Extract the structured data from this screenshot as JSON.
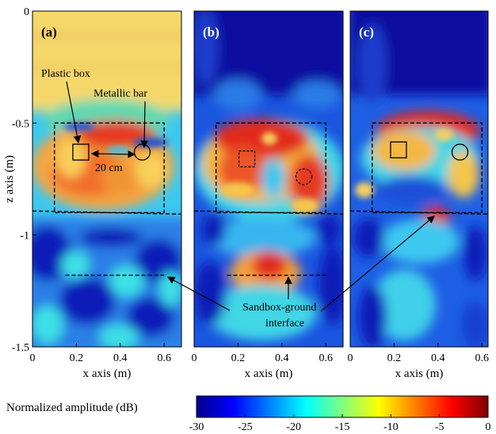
{
  "chart_data": [
    {
      "type": "heatmap",
      "panel_label": "(a)",
      "xlabel": "x axis (m)",
      "ylabel": "z axis (m)",
      "xlim": [
        0,
        0.65
      ],
      "ylim": [
        -1.5,
        0
      ],
      "xticks": [
        "0",
        "0.2",
        "0.4",
        "0.6"
      ],
      "yticks": [
        "0",
        "-0.5",
        "-1",
        "-1.5"
      ],
      "target_box": {
        "x": [
          0.1,
          0.6
        ],
        "z": [
          -0.9,
          -0.5
        ]
      },
      "interface_z": -1.18,
      "markers": [
        {
          "shape": "square",
          "x": 0.22,
          "z": -0.63,
          "style": "solid"
        },
        {
          "shape": "circle",
          "x": 0.5,
          "z": -0.63,
          "style": "solid"
        }
      ],
      "annotations": [
        "Plastic box",
        "Metallic bar",
        "20 cm"
      ]
    },
    {
      "type": "heatmap",
      "panel_label": "(b)",
      "xlabel": "x axis (m)",
      "xlim": [
        0,
        0.65
      ],
      "ylim": [
        -1.5,
        0
      ],
      "xticks": [
        "0",
        "0.2",
        "0.4",
        "0.6"
      ],
      "target_box": {
        "x": [
          0.1,
          0.6
        ],
        "z": [
          -0.9,
          -0.5
        ]
      },
      "interface_z": -1.18,
      "markers": [
        {
          "shape": "square",
          "x": 0.24,
          "z": -0.66,
          "style": "dashed"
        },
        {
          "shape": "circle",
          "x": 0.5,
          "z": -0.74,
          "style": "dashed"
        }
      ]
    },
    {
      "type": "heatmap",
      "panel_label": "(c)",
      "xlabel": "x axis (m)",
      "xlim": [
        0,
        0.65
      ],
      "ylim": [
        -1.5,
        0
      ],
      "xticks": [
        "0",
        "0.2",
        "0.4",
        "0.6"
      ],
      "target_box": {
        "x": [
          0.1,
          0.6
        ],
        "z": [
          -0.9,
          -0.5
        ]
      },
      "markers": [
        {
          "shape": "square",
          "x": 0.22,
          "z": -0.62,
          "style": "solid"
        },
        {
          "shape": "circle",
          "x": 0.5,
          "z": -0.63,
          "style": "solid"
        }
      ]
    }
  ],
  "interface_label": [
    "Sandbox-ground",
    "interface"
  ],
  "colorbar": {
    "label": "Normalized amplitude (dB)",
    "range": [
      -30,
      0
    ],
    "ticks": [
      "-30",
      "-25",
      "-20",
      "-15",
      "-10",
      "-5",
      "0"
    ],
    "colormap": "jet"
  },
  "colors": {
    "deep_blue": "#00008f",
    "blue": "#1e3cff",
    "cyan": "#3cc8f0",
    "yellow": "#f6dc6b",
    "orange": "#f59b38",
    "red": "#e1281e",
    "dark_red": "#7f0000"
  }
}
